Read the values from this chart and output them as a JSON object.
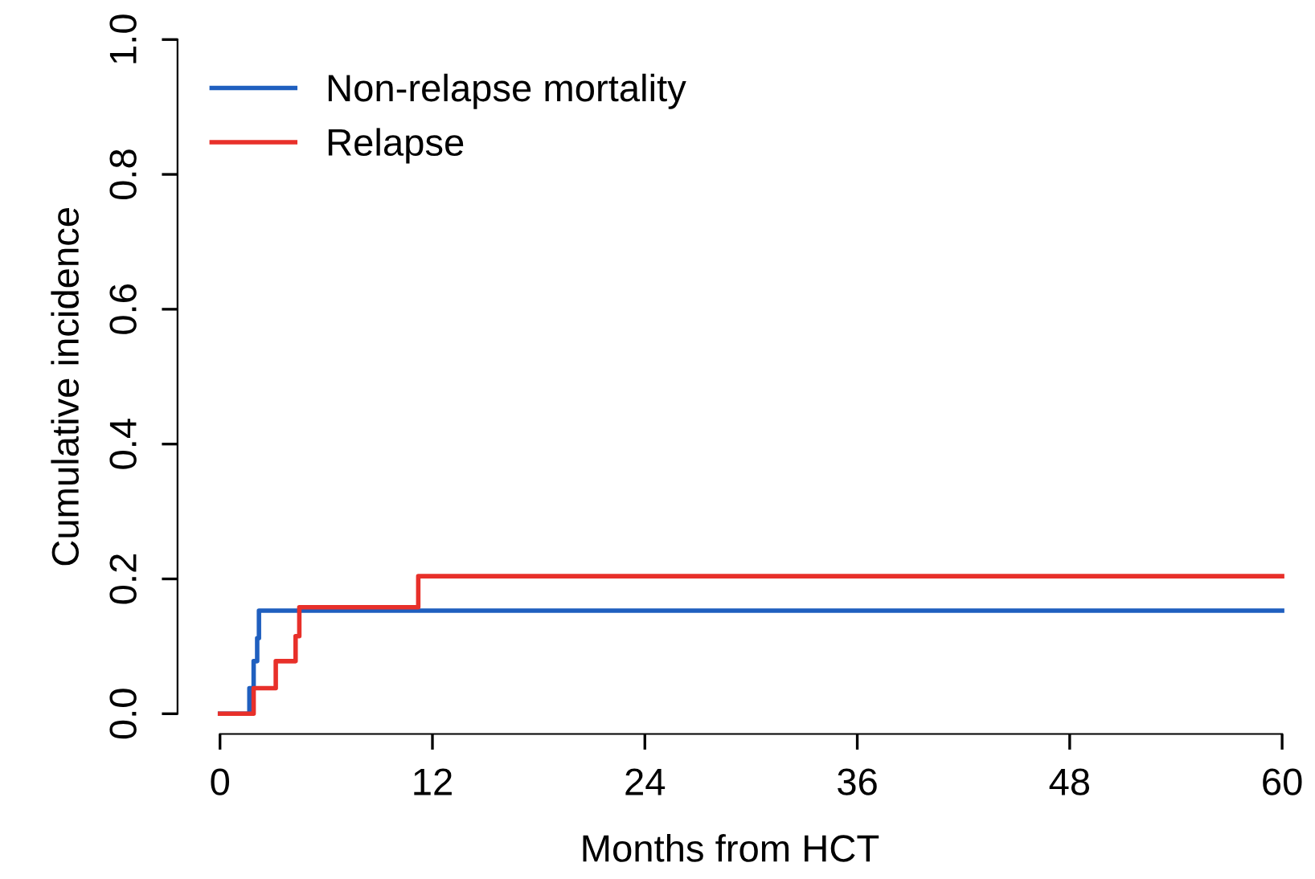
{
  "chart_data": {
    "type": "step",
    "xlabel": "Months from HCT",
    "ylabel": "Cumulative incidence",
    "xlim": [
      -2.4,
      60
    ],
    "ylim": [
      -0.03,
      1
    ],
    "xticks": [
      0,
      12,
      24,
      36,
      48,
      60
    ],
    "yticks": [
      {
        "value": 0,
        "label": "0.0"
      },
      {
        "value": 0.2,
        "label": "0.2"
      },
      {
        "value": 0.4,
        "label": "0.4"
      },
      {
        "value": 0.6,
        "label": "0.6"
      },
      {
        "value": 0.8,
        "label": "0.8"
      },
      {
        "value": 1,
        "label": "1.0"
      }
    ],
    "legend": "top left",
    "grid": false,
    "series": [
      {
        "name": "Non-relapse mortality",
        "color": "#1f5fbf",
        "x": [
          0,
          1.66,
          1.9,
          2.1,
          2.2,
          60
        ],
        "values": [
          0,
          0.038,
          0.078,
          0.112,
          0.153,
          0.153
        ]
      },
      {
        "name": "Relapse",
        "color": "#e8302a",
        "x": [
          0,
          1.9,
          3.15,
          4.27,
          4.48,
          11.2,
          60
        ],
        "values": [
          0,
          0.038,
          0.078,
          0.115,
          0.158,
          0.204,
          0.204
        ]
      }
    ]
  }
}
